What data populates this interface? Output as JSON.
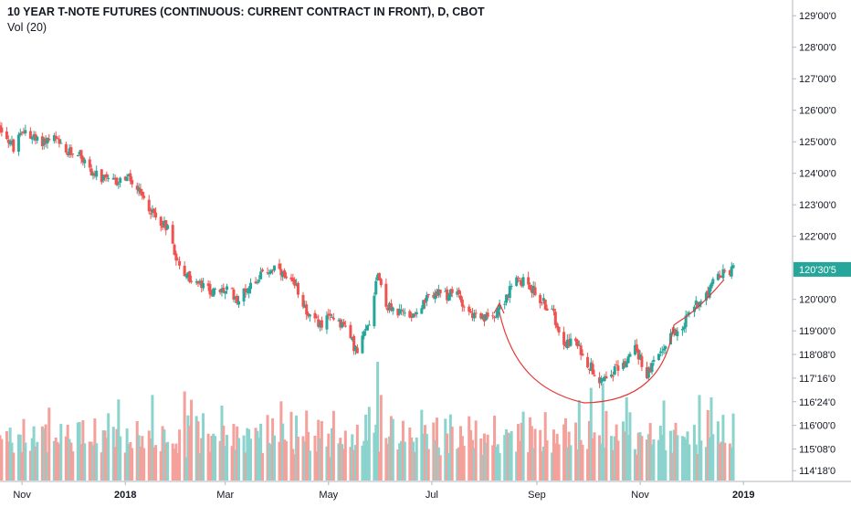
{
  "header": {
    "title": "10 YEAR T-NOTE FUTURES (CONTINUOUS: CURRENT CONTRACT IN FRONT), D, CBOT",
    "volume_label": "Vol (20)"
  },
  "chart_data": {
    "type": "candlestick",
    "title": "10 YEAR T-NOTE FUTURES (CONTINUOUS: CURRENT CONTRACT IN FRONT), D, CBOT",
    "price_axis": {
      "ticks": [
        {
          "label": "129'00'0",
          "value": 129.0
        },
        {
          "label": "128'00'0",
          "value": 128.0
        },
        {
          "label": "127'00'0",
          "value": 127.0
        },
        {
          "label": "126'00'0",
          "value": 126.0
        },
        {
          "label": "125'00'0",
          "value": 125.0
        },
        {
          "label": "124'00'0",
          "value": 124.0
        },
        {
          "label": "123'00'0",
          "value": 123.0
        },
        {
          "label": "122'00'0",
          "value": 122.0
        },
        {
          "label": "120'00'0",
          "value": 120.0
        },
        {
          "label": "119'00'0",
          "value": 119.0
        },
        {
          "label": "118'08'0",
          "value": 118.25
        },
        {
          "label": "117'16'0",
          "value": 117.5
        },
        {
          "label": "116'24'0",
          "value": 116.75
        },
        {
          "label": "116'00'0",
          "value": 116.0
        },
        {
          "label": "115'08'0",
          "value": 115.25
        },
        {
          "label": "114'18'0",
          "value": 114.5625
        }
      ],
      "last_price": {
        "label": "120'30'5",
        "value": 120.95
      },
      "ylim": [
        114.25,
        129.5
      ]
    },
    "x_axis": {
      "labels": [
        "Nov",
        "2018",
        "Mar",
        "May",
        "Jul",
        "Sep",
        "Nov",
        "2019"
      ],
      "label_dates": [
        "2017-11-01",
        "2018-01-01",
        "2018-03-01",
        "2018-05-01",
        "2018-07-01",
        "2018-09-01",
        "2018-11-01",
        "2019-01-01"
      ],
      "range": [
        "2017-10-19",
        "2019-01-30"
      ]
    },
    "price_path": [
      [
        "2017-10-19",
        125.5
      ],
      [
        "2017-10-27",
        124.8
      ],
      [
        "2017-11-03",
        125.4
      ],
      [
        "2017-11-10",
        125.0
      ],
      [
        "2017-11-20",
        125.1
      ],
      [
        "2017-11-27",
        124.6
      ],
      [
        "2017-12-04",
        124.7
      ],
      [
        "2017-12-11",
        124.1
      ],
      [
        "2017-12-18",
        123.8
      ],
      [
        "2017-12-26",
        123.7
      ],
      [
        "2018-01-02",
        123.9
      ],
      [
        "2018-01-10",
        123.3
      ],
      [
        "2018-01-19",
        122.6
      ],
      [
        "2018-01-26",
        122.3
      ],
      [
        "2018-02-02",
        121.0
      ],
      [
        "2018-02-09",
        120.6
      ],
      [
        "2018-02-16",
        120.4
      ],
      [
        "2018-02-23",
        120.2
      ],
      [
        "2018-03-02",
        120.3
      ],
      [
        "2018-03-09",
        120.0
      ],
      [
        "2018-03-16",
        120.5
      ],
      [
        "2018-03-23",
        120.8
      ],
      [
        "2018-03-30",
        121.0
      ],
      [
        "2018-04-06",
        120.6
      ],
      [
        "2018-04-13",
        120.3
      ],
      [
        "2018-04-20",
        119.4
      ],
      [
        "2018-04-27",
        119.2
      ],
      [
        "2018-05-04",
        119.5
      ],
      [
        "2018-05-11",
        119.1
      ],
      [
        "2018-05-18",
        118.3
      ],
      [
        "2018-05-25",
        119.3
      ],
      [
        "2018-05-30",
        120.9
      ],
      [
        "2018-06-04",
        119.8
      ],
      [
        "2018-06-11",
        119.6
      ],
      [
        "2018-06-18",
        119.5
      ],
      [
        "2018-06-25",
        119.8
      ],
      [
        "2018-07-02",
        120.2
      ],
      [
        "2018-07-09",
        120.1
      ],
      [
        "2018-07-16",
        120.2
      ],
      [
        "2018-07-23",
        119.6
      ],
      [
        "2018-07-30",
        119.3
      ],
      [
        "2018-08-06",
        119.5
      ],
      [
        "2018-08-13",
        120.0
      ],
      [
        "2018-08-20",
        120.6
      ],
      [
        "2018-08-27",
        120.5
      ],
      [
        "2018-09-03",
        120.0
      ],
      [
        "2018-09-10",
        119.6
      ],
      [
        "2018-09-17",
        118.7
      ],
      [
        "2018-09-24",
        118.6
      ],
      [
        "2018-10-01",
        118.0
      ],
      [
        "2018-10-08",
        117.5
      ],
      [
        "2018-10-15",
        117.7
      ],
      [
        "2018-10-22",
        117.9
      ],
      [
        "2018-10-29",
        118.5
      ],
      [
        "2018-11-05",
        117.6
      ],
      [
        "2018-11-12",
        118.2
      ],
      [
        "2018-11-19",
        118.9
      ],
      [
        "2018-11-26",
        119.2
      ],
      [
        "2018-12-03",
        119.8
      ],
      [
        "2018-12-10",
        120.2
      ],
      [
        "2018-12-17",
        120.7
      ],
      [
        "2018-12-26",
        120.95
      ]
    ],
    "volume_pattern": [
      0.35,
      0.3,
      0.4,
      0.28,
      0.5,
      0.33,
      0.25,
      0.45,
      0.38,
      0.3,
      0.55,
      0.42,
      0.28,
      0.36,
      0.6,
      0.32,
      0.27,
      0.48,
      0.35,
      0.4,
      0.3,
      0.52,
      0.44,
      0.29,
      0.37,
      0.31,
      0.46,
      0.34,
      0.58,
      0.3,
      0.39,
      0.26,
      0.43,
      0.5,
      0.33,
      0.41
    ],
    "volume_spikes": [
      [
        "2018-02-05",
        0.75
      ],
      [
        "2018-02-09",
        0.68
      ],
      [
        "2018-05-25",
        0.62
      ],
      [
        "2018-05-30",
        1.0
      ],
      [
        "2018-06-01",
        0.72
      ],
      [
        "2018-08-24",
        0.58
      ],
      [
        "2018-10-03",
        0.78
      ],
      [
        "2018-10-10",
        0.82
      ],
      [
        "2018-10-24",
        0.7
      ],
      [
        "2018-12-06",
        0.72
      ],
      [
        "2018-12-13",
        0.7
      ]
    ]
  },
  "annotations": [
    {
      "type": "curved-arrow",
      "color": "#e53935",
      "description": "hand-drawn curved arrow tracing a rounded bottom from Aug 2018 to Dec 2018"
    },
    {
      "type": "projection-stroke",
      "color": "#e53935"
    }
  ],
  "colors": {
    "up": "#26a69a",
    "down": "#ef5350",
    "up_volume": "#8bd3cc",
    "down_volume": "#f4a19c",
    "annotation": "#e53935",
    "last_price_badge": "#26a69a",
    "text": "#131722",
    "axis_line": "#b2b5be"
  }
}
